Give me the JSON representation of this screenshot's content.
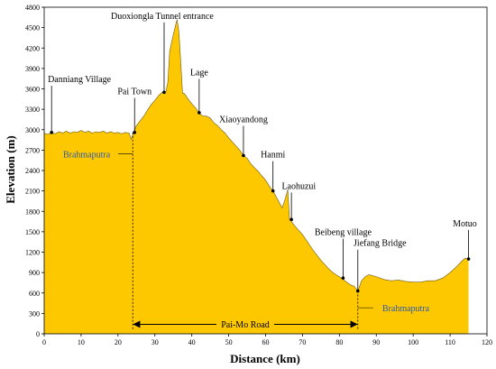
{
  "chart_data": {
    "type": "area",
    "xlabel": "Distance (km)",
    "ylabel": "Elevation (m)",
    "xlim": [
      0,
      120
    ],
    "ylim": [
      0,
      4800
    ],
    "x_ticks": [
      "0",
      "10",
      "20",
      "30",
      "40",
      "50",
      "60",
      "70",
      "80",
      "90",
      "100",
      "110",
      "120"
    ],
    "y_ticks": [
      "0",
      "300",
      "600",
      "900",
      "1200",
      "1500",
      "1800",
      "2100",
      "2400",
      "2700",
      "3000",
      "3300",
      "3600",
      "3900",
      "4200",
      "4500",
      "4800"
    ],
    "fill_color": "#fec800",
    "profile": [
      {
        "x": 0,
        "y": 2950
      },
      {
        "x": 1,
        "y": 2930
      },
      {
        "x": 2,
        "y": 2960
      },
      {
        "x": 3,
        "y": 2940
      },
      {
        "x": 4,
        "y": 2970
      },
      {
        "x": 5,
        "y": 2950
      },
      {
        "x": 6,
        "y": 2980
      },
      {
        "x": 7,
        "y": 2950
      },
      {
        "x": 8,
        "y": 2970
      },
      {
        "x": 9,
        "y": 2960
      },
      {
        "x": 10,
        "y": 2990
      },
      {
        "x": 11,
        "y": 2960
      },
      {
        "x": 12,
        "y": 2980
      },
      {
        "x": 13,
        "y": 2950
      },
      {
        "x": 14,
        "y": 2970
      },
      {
        "x": 15,
        "y": 2960
      },
      {
        "x": 16,
        "y": 2980
      },
      {
        "x": 17,
        "y": 2950
      },
      {
        "x": 18,
        "y": 2970
      },
      {
        "x": 19,
        "y": 2950
      },
      {
        "x": 20,
        "y": 2960
      },
      {
        "x": 21,
        "y": 2940
      },
      {
        "x": 22,
        "y": 2960
      },
      {
        "x": 23,
        "y": 2950
      },
      {
        "x": 23.6,
        "y": 2860
      },
      {
        "x": 24,
        "y": 2930
      },
      {
        "x": 25,
        "y": 3060
      },
      {
        "x": 26,
        "y": 3130
      },
      {
        "x": 27,
        "y": 3200
      },
      {
        "x": 28,
        "y": 3290
      },
      {
        "x": 29,
        "y": 3370
      },
      {
        "x": 30,
        "y": 3430
      },
      {
        "x": 31,
        "y": 3500
      },
      {
        "x": 32,
        "y": 3550
      },
      {
        "x": 33,
        "y": 3560
      },
      {
        "x": 33.5,
        "y": 3700
      },
      {
        "x": 34,
        "y": 4150
      },
      {
        "x": 35,
        "y": 4400
      },
      {
        "x": 36,
        "y": 4620
      },
      {
        "x": 36.5,
        "y": 4450
      },
      {
        "x": 37,
        "y": 4000
      },
      {
        "x": 37.5,
        "y": 3540
      },
      {
        "x": 38,
        "y": 3530
      },
      {
        "x": 39,
        "y": 3450
      },
      {
        "x": 40,
        "y": 3380
      },
      {
        "x": 41,
        "y": 3320
      },
      {
        "x": 42,
        "y": 3250
      },
      {
        "x": 43,
        "y": 3200
      },
      {
        "x": 44,
        "y": 3200
      },
      {
        "x": 45,
        "y": 3170
      },
      {
        "x": 46,
        "y": 3100
      },
      {
        "x": 47,
        "y": 3060
      },
      {
        "x": 48,
        "y": 3000
      },
      {
        "x": 49,
        "y": 2950
      },
      {
        "x": 50,
        "y": 2880
      },
      {
        "x": 51,
        "y": 2820
      },
      {
        "x": 52,
        "y": 2760
      },
      {
        "x": 53,
        "y": 2700
      },
      {
        "x": 54,
        "y": 2620
      },
      {
        "x": 55,
        "y": 2580
      },
      {
        "x": 56,
        "y": 2500
      },
      {
        "x": 57,
        "y": 2440
      },
      {
        "x": 58,
        "y": 2390
      },
      {
        "x": 59,
        "y": 2320
      },
      {
        "x": 60,
        "y": 2260
      },
      {
        "x": 61,
        "y": 2170
      },
      {
        "x": 62,
        "y": 2100
      },
      {
        "x": 63,
        "y": 2000
      },
      {
        "x": 64,
        "y": 1900
      },
      {
        "x": 64.5,
        "y": 1850
      },
      {
        "x": 65,
        "y": 1930
      },
      {
        "x": 65.5,
        "y": 2020
      },
      {
        "x": 66,
        "y": 2120
      },
      {
        "x": 66.5,
        "y": 1680
      },
      {
        "x": 67,
        "y": 1650
      },
      {
        "x": 68,
        "y": 1580
      },
      {
        "x": 69,
        "y": 1520
      },
      {
        "x": 70,
        "y": 1460
      },
      {
        "x": 71,
        "y": 1380
      },
      {
        "x": 72,
        "y": 1300
      },
      {
        "x": 73,
        "y": 1220
      },
      {
        "x": 74,
        "y": 1150
      },
      {
        "x": 75,
        "y": 1080
      },
      {
        "x": 76,
        "y": 1020
      },
      {
        "x": 77,
        "y": 960
      },
      {
        "x": 78,
        "y": 910
      },
      {
        "x": 79,
        "y": 870
      },
      {
        "x": 80,
        "y": 840
      },
      {
        "x": 81,
        "y": 800
      },
      {
        "x": 82,
        "y": 760
      },
      {
        "x": 83,
        "y": 720
      },
      {
        "x": 84,
        "y": 700
      },
      {
        "x": 85,
        "y": 630
      },
      {
        "x": 86,
        "y": 780
      },
      {
        "x": 87,
        "y": 840
      },
      {
        "x": 88,
        "y": 870
      },
      {
        "x": 90,
        "y": 840
      },
      {
        "x": 92,
        "y": 800
      },
      {
        "x": 94,
        "y": 780
      },
      {
        "x": 96,
        "y": 790
      },
      {
        "x": 98,
        "y": 770
      },
      {
        "x": 100,
        "y": 760
      },
      {
        "x": 102,
        "y": 760
      },
      {
        "x": 104,
        "y": 780
      },
      {
        "x": 106,
        "y": 780
      },
      {
        "x": 108,
        "y": 820
      },
      {
        "x": 110,
        "y": 900
      },
      {
        "x": 112,
        "y": 1000
      },
      {
        "x": 113,
        "y": 1060
      },
      {
        "x": 114,
        "y": 1110
      },
      {
        "x": 115,
        "y": 1100
      }
    ],
    "annotations": [
      {
        "label": "Danniang Village",
        "x": 2,
        "y": 2960,
        "label_x": 1,
        "label_y": 3700,
        "anchor": "start"
      },
      {
        "label": "Pai Town",
        "x": 24.5,
        "y": 2960,
        "label_x": 24.5,
        "label_y": 3520,
        "anchor": "middle"
      },
      {
        "label": "Duoxiongla Tunnel entrance",
        "x": 32.5,
        "y": 3550,
        "label_x": 32,
        "label_y": 4630,
        "anchor": "middle"
      },
      {
        "label": "Lage",
        "x": 42,
        "y": 3250,
        "label_x": 42,
        "label_y": 3800,
        "anchor": "middle"
      },
      {
        "label": "Xiaoyandong",
        "x": 54,
        "y": 2620,
        "label_x": 54,
        "label_y": 3110,
        "anchor": "middle"
      },
      {
        "label": "Hanmi",
        "x": 62,
        "y": 2100,
        "label_x": 62,
        "label_y": 2590,
        "anchor": "middle"
      },
      {
        "label": "Laohuzui",
        "x": 67,
        "y": 1680,
        "label_x": 69,
        "label_y": 2130,
        "anchor": "middle"
      },
      {
        "label": "Beibeng village",
        "x": 81,
        "y": 820,
        "label_x": 81,
        "label_y": 1450,
        "anchor": "middle"
      },
      {
        "label": "Jiefang Bridge",
        "x": 85,
        "y": 630,
        "label_x": 91,
        "label_y": 1290,
        "anchor": "middle"
      },
      {
        "label": "Motuo",
        "x": 115,
        "y": 1100,
        "label_x": 114,
        "label_y": 1580,
        "anchor": "middle"
      }
    ],
    "river_labels": [
      {
        "label": "Brahmaputra",
        "x": 24,
        "y": 2860,
        "label_x": 11.5,
        "label_y": 2590
      },
      {
        "label": "Brahmaputra",
        "x": 85,
        "y": 630,
        "label_x": 98,
        "label_y": 330
      }
    ],
    "road": {
      "label": "Pai-Mo Road",
      "x_start": 24,
      "x_end": 85,
      "y": 140
    }
  }
}
